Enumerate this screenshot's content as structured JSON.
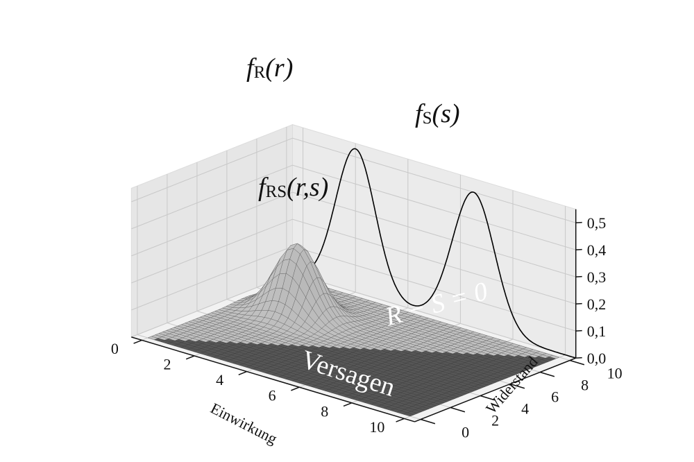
{
  "chart_data": {
    "type": "surface3d",
    "title": "",
    "x_axis": {
      "label": "Einwirkung",
      "range": [
        0,
        10
      ],
      "ticks": [
        0,
        2,
        4,
        6,
        8,
        10
      ],
      "tick_labels": [
        "0",
        "2",
        "4",
        "6",
        "8",
        "10"
      ]
    },
    "y_axis": {
      "label": "Widerstand",
      "range": [
        0,
        10
      ],
      "ticks": [
        0,
        2,
        4,
        6,
        8,
        10
      ],
      "tick_labels": [
        "0",
        "2",
        "4",
        "6",
        "8",
        "10"
      ]
    },
    "z_axis": {
      "label": "",
      "range": [
        0,
        0.55
      ],
      "ticks": [
        0,
        0.1,
        0.2,
        0.3,
        0.4,
        0.5
      ],
      "tick_labels": [
        "0,0",
        "0,1",
        "0,2",
        "0,3",
        "0,4",
        "0,5"
      ]
    },
    "grid": true,
    "series": [
      {
        "name": "fR(r)",
        "kind": "marginal_curve_on_back_wall",
        "distribution": "normal",
        "mean": 2.0,
        "std": 0.75,
        "peak": 0.53
      },
      {
        "name": "fS(s)",
        "kind": "marginal_curve_on_back_wall",
        "distribution": "normal",
        "mean": 6.5,
        "std": 0.8,
        "peak": 0.5
      },
      {
        "name": "fRS(r,s)",
        "kind": "surface",
        "distribution": "bivariate_normal",
        "mean_einwirkung": 2.0,
        "mean_widerstand": 6.5,
        "std_einwirkung": 0.75,
        "std_widerstand": 0.8,
        "peak": 0.265
      }
    ],
    "limit_state": "R - S = 0",
    "failure_region": "Versagen",
    "labels": {
      "fr_main": "f",
      "fr_sub": "R",
      "fr_arg": "(r)",
      "fs_main": "f",
      "fs_sub": "S",
      "fs_arg": "(s)",
      "frs_main": "f",
      "frs_sub": "RS",
      "frs_arg": "(r,s)",
      "limit_text": "R − S = 0",
      "region_text": "Versagen"
    },
    "colors": {
      "safe_surface": "#c9c9c9",
      "failure_surface": "#5c5c5c",
      "pane": "#ebebeb",
      "gridline": "#c8c8c8",
      "curve": "#000000"
    }
  }
}
